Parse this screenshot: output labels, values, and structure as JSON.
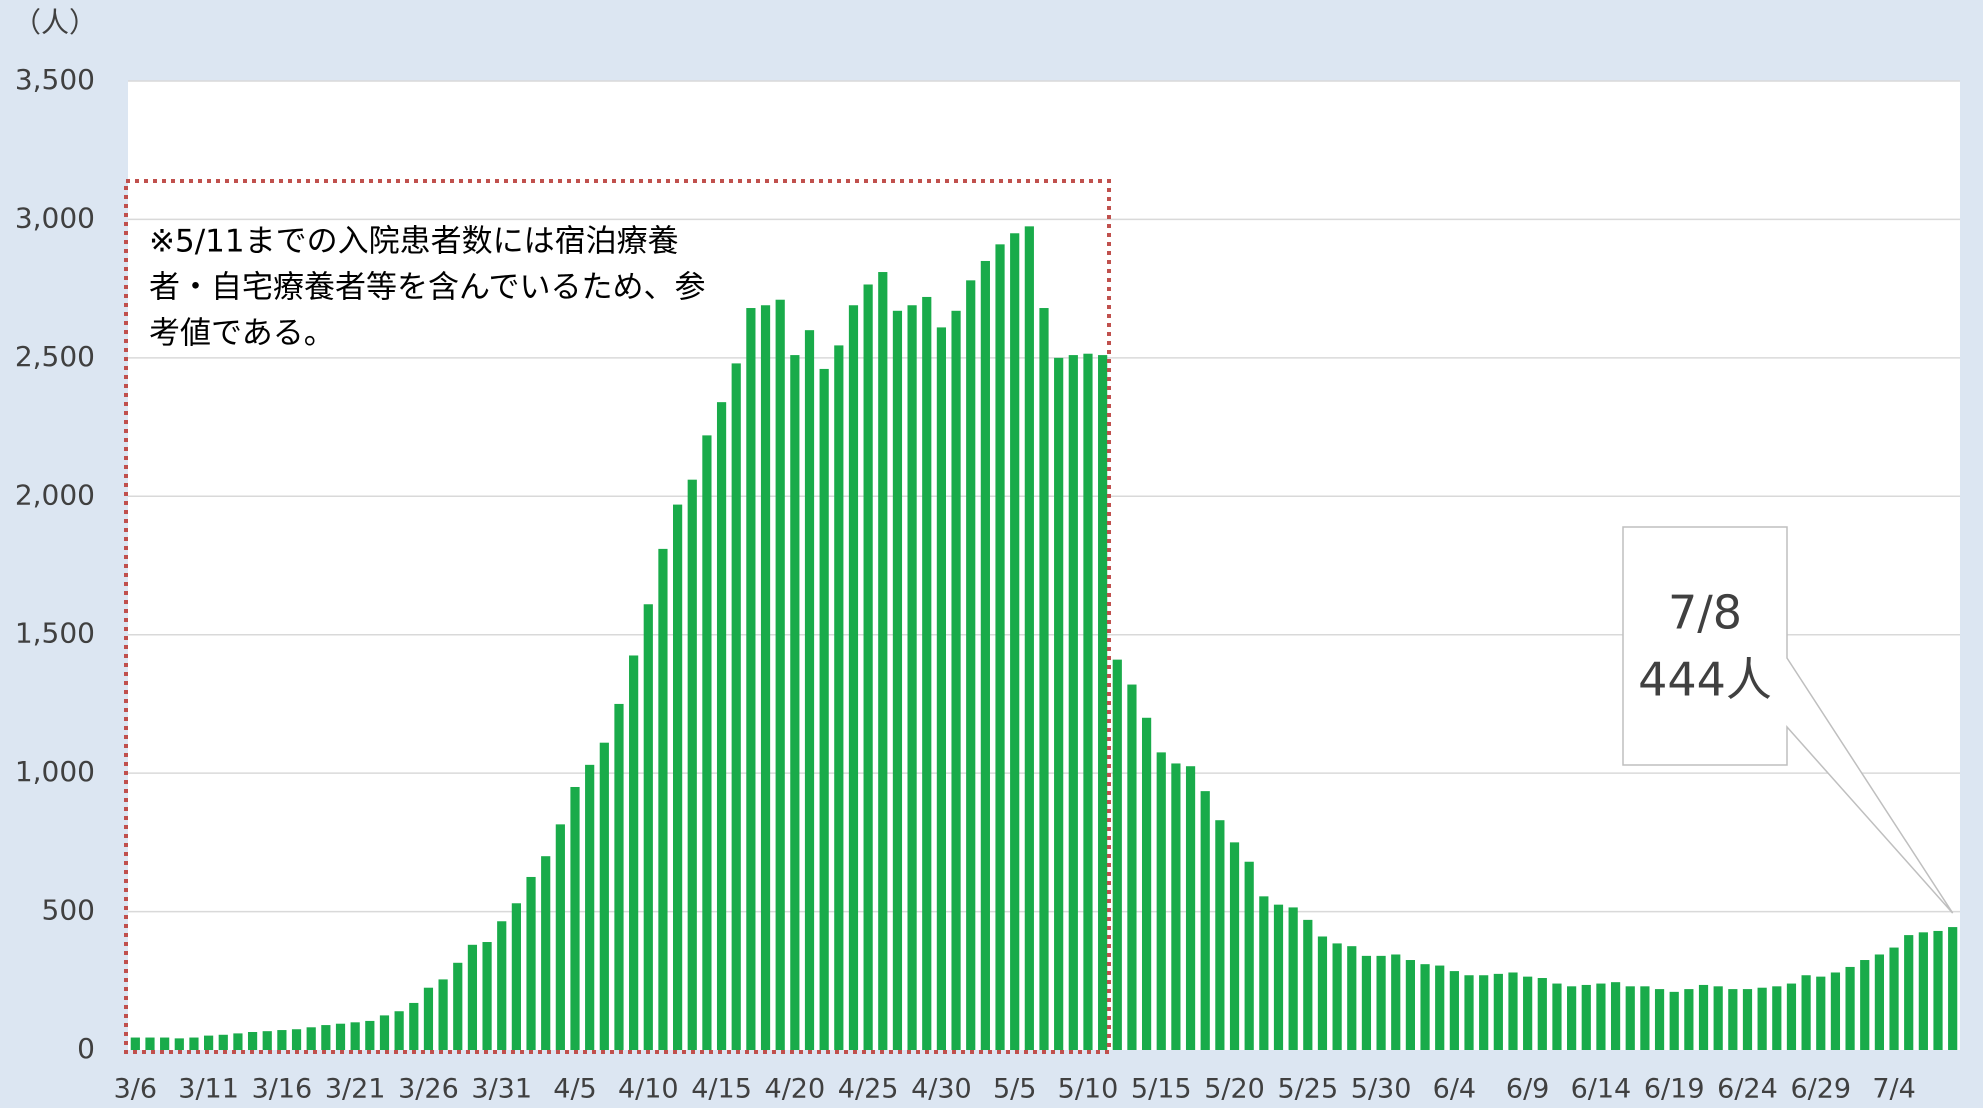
{
  "chart_data": {
    "type": "bar",
    "y_unit": "（人）",
    "color": "#19ab4a",
    "grid": true,
    "ylim": [
      0,
      3500
    ],
    "yticks": [
      0,
      500,
      {
        "value": 1000,
        "label": "1,000"
      },
      {
        "value": 1500,
        "label": "1,500"
      },
      {
        "value": 2000,
        "label": "2,000"
      },
      {
        "value": 2500,
        "label": "2,500"
      },
      {
        "value": 3000,
        "label": "3,000"
      },
      {
        "value": 3500,
        "label": "3,500"
      }
    ],
    "categories": [
      "3/6",
      null,
      null,
      null,
      null,
      "3/11",
      null,
      null,
      null,
      null,
      "3/16",
      null,
      null,
      null,
      null,
      "3/21",
      null,
      null,
      null,
      null,
      "3/26",
      null,
      null,
      null,
      null,
      "3/31",
      null,
      null,
      null,
      null,
      "4/5",
      null,
      null,
      null,
      null,
      "4/10",
      null,
      null,
      null,
      null,
      "4/15",
      null,
      null,
      null,
      null,
      "4/20",
      null,
      null,
      null,
      null,
      "4/25",
      null,
      null,
      null,
      null,
      "4/30",
      null,
      null,
      null,
      null,
      "5/5",
      null,
      null,
      null,
      null,
      "5/10",
      null,
      null,
      null,
      null,
      "5/15",
      null,
      null,
      null,
      null,
      "5/20",
      null,
      null,
      null,
      null,
      "5/25",
      null,
      null,
      null,
      null,
      "5/30",
      null,
      null,
      null,
      null,
      "6/4",
      null,
      null,
      null,
      null,
      "6/9",
      null,
      null,
      null,
      null,
      "6/14",
      null,
      null,
      null,
      null,
      "6/19",
      null,
      null,
      null,
      null,
      "6/24",
      null,
      null,
      null,
      null,
      "6/29",
      null,
      null,
      null,
      null,
      "7/4",
      null,
      null,
      null,
      null
    ],
    "values": [
      45,
      45,
      45,
      42,
      45,
      52,
      55,
      60,
      65,
      68,
      72,
      75,
      82,
      90,
      95,
      100,
      105,
      125,
      140,
      170,
      225,
      255,
      315,
      380,
      390,
      465,
      530,
      625,
      700,
      815,
      950,
      1030,
      1110,
      1250,
      1425,
      1610,
      1810,
      1970,
      2060,
      2220,
      2340,
      2480,
      2680,
      2690,
      2710,
      2510,
      2600,
      2460,
      2545,
      2690,
      2765,
      2810,
      2670,
      2690,
      2720,
      2610,
      2670,
      2780,
      2850,
      2910,
      2950,
      2975,
      2680,
      2500,
      2510,
      2515,
      2510,
      1410,
      1320,
      1200,
      1075,
      1035,
      1025,
      935,
      830,
      750,
      680,
      555,
      525,
      515,
      470,
      410,
      385,
      375,
      340,
      340,
      345,
      325,
      310,
      305,
      285,
      270,
      270,
      275,
      280,
      265,
      260,
      240,
      230,
      235,
      240,
      245,
      230,
      230,
      220,
      210,
      220,
      235,
      230,
      220,
      220,
      225,
      230,
      240,
      270,
      265,
      280,
      300,
      325,
      345,
      370,
      415,
      425,
      430,
      444
    ],
    "note": [
      "※5/11までの入院患者数には宿泊療養",
      "者・自宅療養者等を含んでいるため、参",
      "考値である。"
    ],
    "callout": {
      "date": "7/8",
      "index": 124,
      "value_label": "444人"
    }
  }
}
